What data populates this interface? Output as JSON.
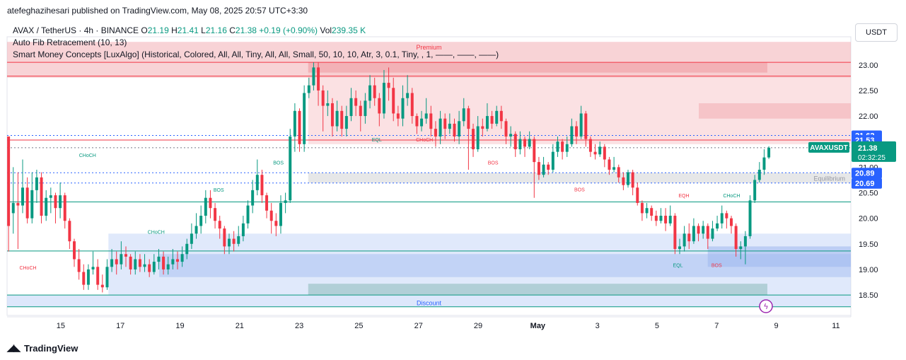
{
  "publisher": "atefeghazihesari published on TradingView.com, May 08, 2025 20:57 UTC+3:30",
  "legend": {
    "symbol": "AVAX / TetherUS · 4h · BINANCE",
    "o_label": "O",
    "o": "21.19",
    "h_label": "H",
    "h": "21.41",
    "l_label": "L",
    "l": "21.16",
    "c_label": "C",
    "c": "21.38",
    "change": "+0.19 (+0.90%)",
    "vol_label": "Vol",
    "vol": "239.35 K",
    "indicator1": "Auto Fib Retracement (10, 13)",
    "indicator2": "Smart Money Concepts [LuxAlgo] (Historical, Colored, All, All, Tiny, All, All, Small, 50, 10, 10, Atr, 3, 0.1, Tiny, , 1, ——, ——, ——)"
  },
  "currency_button": "USDT",
  "footer_brand": "TradingView",
  "colors": {
    "up": "#089981",
    "down": "#f23645",
    "premium": "#f7c9cc",
    "discount": "#c7d7f8",
    "accent": "#2962ff"
  },
  "chart_data": {
    "type": "candlestick",
    "y_ticks": [
      "23.00",
      "22.50",
      "22.00",
      "21.50",
      "21.00",
      "20.50",
      "20.00",
      "19.50",
      "19.00",
      "18.50"
    ],
    "y_tick_values": [
      23.0,
      22.5,
      22.0,
      21.5,
      21.0,
      20.5,
      20.0,
      19.5,
      19.0,
      18.5
    ],
    "ylim": [
      18.1,
      23.55
    ],
    "x_ticks": [
      "15",
      "17",
      "19",
      "21",
      "23",
      "25",
      "27",
      "29",
      "May",
      "3",
      "5",
      "7",
      "9",
      "11"
    ],
    "x_tick_days": [
      15,
      17,
      19,
      21,
      23,
      25,
      27,
      29,
      31,
      33,
      35,
      37,
      39,
      41
    ],
    "xlim_days": [
      13.2,
      41.5
    ],
    "last_day": 38.75,
    "price_labels": [
      {
        "text": "21.62",
        "value": 21.62,
        "kind": "level"
      },
      {
        "text": "21.53",
        "value": 21.53,
        "kind": "level"
      },
      {
        "text": "21.38",
        "value": 21.38,
        "kind": "price"
      },
      {
        "text": "20.89",
        "value": 20.89,
        "kind": "level"
      },
      {
        "text": "20.69",
        "value": 20.69,
        "kind": "level"
      }
    ],
    "price_tag": {
      "symbol": "AVAXUSDT",
      "countdown": "02:32:25"
    },
    "zones": [
      {
        "name": "Premium",
        "label": "Premium",
        "from_day": 13.2,
        "to_day": 41.5,
        "low": 22.75,
        "high": 23.45,
        "fill": "#f2a7ad",
        "opacity": 0.5
      },
      {
        "name": "premium-inner",
        "label": "",
        "from_day": 23.3,
        "to_day": 41.5,
        "low": 21.45,
        "high": 23.05,
        "fill": "#f7c9cc",
        "opacity": 0.55
      },
      {
        "name": "Equilibrium",
        "label": "Equilibrium",
        "from_day": 23.3,
        "to_day": 41.5,
        "low": 20.69,
        "high": 20.89,
        "fill": "#c8c9cc",
        "opacity": 0.45
      },
      {
        "name": "Discount",
        "label": "Discount",
        "from_day": 13.2,
        "to_day": 41.5,
        "low": 18.27,
        "high": 18.5,
        "fill": "#c7d7f8",
        "opacity": 0.6
      }
    ],
    "boxes": [
      {
        "from_day": 16.6,
        "to_day": 41.5,
        "low": 18.5,
        "high": 19.7,
        "fill": "#c7d7f8",
        "opacity": 0.55
      },
      {
        "from_day": 18.3,
        "to_day": 41.5,
        "low": 18.85,
        "high": 19.3,
        "fill": "#a9c1f2",
        "opacity": 0.55
      },
      {
        "from_day": 23.3,
        "to_day": 38.7,
        "low": 18.5,
        "high": 18.72,
        "fill": "#9cc3c8",
        "opacity": 0.7
      },
      {
        "from_day": 36.7,
        "to_day": 41.5,
        "low": 19.05,
        "high": 19.45,
        "fill": "#9fb8ee",
        "opacity": 0.55
      },
      {
        "from_day": 23.3,
        "to_day": 38.7,
        "low": 22.85,
        "high": 23.05,
        "fill": "#ee9aa0",
        "opacity": 0.55
      },
      {
        "from_day": 36.4,
        "to_day": 41.5,
        "low": 21.95,
        "high": 22.25,
        "fill": "#f2a7ad",
        "opacity": 0.5
      }
    ],
    "levels": [
      {
        "value": 21.62,
        "style": "dotted",
        "color": "#2962ff"
      },
      {
        "value": 21.53,
        "style": "solid",
        "color": "#f23645"
      },
      {
        "value": 21.38,
        "style": "dotted",
        "color": "#787b86"
      },
      {
        "value": 20.89,
        "style": "dotted",
        "color": "#2962ff"
      },
      {
        "value": 20.69,
        "style": "dotted",
        "color": "#2962ff"
      },
      {
        "value": 20.32,
        "style": "solid",
        "color": "#089981"
      },
      {
        "value": 19.36,
        "style": "solid",
        "color": "#089981"
      },
      {
        "value": 23.05,
        "style": "solid",
        "color": "#f23645"
      },
      {
        "value": 22.78,
        "style": "solid",
        "color": "#f23645"
      },
      {
        "value": 18.5,
        "style": "solid",
        "color": "#089981"
      },
      {
        "value": 18.27,
        "style": "solid",
        "color": "#089981"
      }
    ],
    "structure_labels": [
      {
        "text": "CHoCH",
        "day": 13.9,
        "value": 19.0,
        "color": "#f23645"
      },
      {
        "text": "CHoCH",
        "day": 15.9,
        "value": 21.2,
        "color": "#089981"
      },
      {
        "text": "CHoCH",
        "day": 18.2,
        "value": 19.7,
        "color": "#089981"
      },
      {
        "text": "BOS",
        "day": 20.3,
        "value": 20.52,
        "color": "#089981"
      },
      {
        "text": "BOS",
        "day": 22.3,
        "value": 21.05,
        "color": "#089981"
      },
      {
        "text": "EQL",
        "day": 25.6,
        "value": 21.5,
        "color": "#089981"
      },
      {
        "text": "CHoCH",
        "day": 27.2,
        "value": 21.5,
        "color": "#f23645"
      },
      {
        "text": "BOS",
        "day": 29.5,
        "value": 21.05,
        "color": "#f23645"
      },
      {
        "text": "BOS",
        "day": 32.4,
        "value": 20.53,
        "color": "#f23645"
      },
      {
        "text": "EQH",
        "day": 35.9,
        "value": 20.41,
        "color": "#f23645"
      },
      {
        "text": "CHoCH",
        "day": 37.5,
        "value": 20.41,
        "color": "#089981"
      },
      {
        "text": "EQL",
        "day": 35.7,
        "value": 19.05,
        "color": "#089981"
      },
      {
        "text": "BOS",
        "day": 37.0,
        "value": 19.05,
        "color": "#f23645"
      }
    ],
    "candles": [
      [
        21.6,
        19.85,
        20.1,
        19.35
      ],
      [
        20.1,
        20.3,
        21.0,
        19.7
      ],
      [
        20.3,
        20.25,
        20.9,
        19.4
      ],
      [
        20.25,
        20.6,
        21.15,
        20.1
      ],
      [
        20.6,
        20.0,
        20.8,
        19.9
      ],
      [
        20.0,
        20.55,
        20.9,
        19.9
      ],
      [
        20.55,
        20.8,
        20.95,
        20.3
      ],
      [
        20.8,
        20.05,
        20.9,
        19.9
      ],
      [
        20.05,
        20.4,
        20.55,
        19.95
      ],
      [
        20.4,
        20.45,
        20.6,
        20.1
      ],
      [
        20.45,
        20.2,
        20.5,
        19.9
      ],
      [
        20.2,
        20.45,
        20.7,
        20.0
      ],
      [
        20.45,
        19.95,
        20.5,
        19.8
      ],
      [
        19.95,
        19.55,
        20.0,
        19.4
      ],
      [
        19.55,
        19.2,
        19.6,
        19.05
      ],
      [
        19.2,
        18.95,
        19.4,
        18.8
      ],
      [
        18.95,
        18.7,
        19.1,
        18.6
      ],
      [
        18.7,
        19.0,
        19.1,
        18.6
      ],
      [
        19.0,
        19.05,
        19.35,
        18.9
      ],
      [
        19.05,
        18.7,
        19.2,
        18.6
      ],
      [
        18.7,
        18.65,
        18.9,
        18.55
      ],
      [
        18.65,
        19.05,
        19.2,
        18.6
      ],
      [
        19.05,
        19.2,
        19.4,
        18.95
      ],
      [
        19.2,
        19.1,
        19.35,
        18.9
      ],
      [
        19.1,
        19.3,
        19.55,
        19.0
      ],
      [
        19.3,
        19.25,
        19.45,
        19.05
      ],
      [
        19.25,
        19.0,
        19.3,
        18.9
      ],
      [
        19.0,
        19.2,
        19.35,
        18.9
      ],
      [
        19.2,
        19.05,
        19.3,
        18.95
      ],
      [
        19.05,
        19.1,
        19.3,
        18.95
      ],
      [
        19.1,
        18.95,
        19.2,
        18.85
      ],
      [
        18.95,
        19.15,
        19.3,
        18.9
      ],
      [
        19.15,
        19.25,
        19.4,
        19.0
      ],
      [
        19.25,
        19.0,
        19.35,
        18.9
      ],
      [
        19.0,
        19.1,
        19.25,
        18.9
      ],
      [
        19.1,
        19.2,
        19.4,
        19.0
      ],
      [
        19.2,
        19.15,
        19.35,
        19.0
      ],
      [
        19.15,
        19.3,
        19.45,
        19.05
      ],
      [
        19.3,
        19.5,
        19.6,
        19.2
      ],
      [
        19.5,
        19.7,
        19.9,
        19.4
      ],
      [
        19.7,
        19.85,
        20.1,
        19.6
      ],
      [
        19.85,
        20.05,
        20.25,
        19.7
      ],
      [
        20.05,
        20.4,
        20.55,
        19.9
      ],
      [
        20.4,
        20.2,
        20.55,
        20.0
      ],
      [
        20.2,
        19.95,
        20.3,
        19.8
      ],
      [
        19.95,
        19.8,
        20.05,
        19.6
      ],
      [
        19.8,
        19.45,
        19.85,
        19.3
      ],
      [
        19.45,
        19.6,
        19.7,
        19.3
      ],
      [
        19.6,
        19.5,
        19.75,
        19.35
      ],
      [
        19.5,
        19.65,
        19.85,
        19.45
      ],
      [
        19.65,
        19.9,
        20.05,
        19.55
      ],
      [
        19.9,
        20.25,
        20.35,
        19.8
      ],
      [
        20.25,
        20.55,
        20.75,
        20.1
      ],
      [
        20.55,
        20.85,
        21.15,
        20.45
      ],
      [
        20.85,
        20.45,
        20.95,
        20.3
      ],
      [
        20.45,
        20.15,
        20.5,
        20.0
      ],
      [
        20.15,
        19.95,
        20.3,
        19.7
      ],
      [
        19.95,
        19.85,
        20.1,
        19.65
      ],
      [
        19.85,
        20.3,
        20.45,
        19.7
      ],
      [
        20.3,
        20.35,
        20.5,
        20.1
      ],
      [
        20.35,
        21.6,
        21.75,
        20.3
      ],
      [
        21.6,
        22.1,
        22.25,
        21.3
      ],
      [
        22.1,
        21.45,
        22.15,
        21.3
      ],
      [
        21.45,
        22.45,
        22.6,
        21.3
      ],
      [
        22.45,
        22.6,
        22.75,
        22.35
      ],
      [
        22.6,
        22.95,
        23.05,
        22.5
      ],
      [
        22.95,
        22.5,
        23.05,
        22.2
      ],
      [
        22.5,
        22.2,
        22.6,
        21.7
      ],
      [
        22.2,
        22.25,
        22.5,
        22.0
      ],
      [
        22.25,
        21.8,
        22.35,
        21.6
      ],
      [
        21.8,
        22.1,
        22.3,
        21.7
      ],
      [
        22.1,
        21.75,
        22.2,
        21.6
      ],
      [
        21.75,
        22.0,
        22.2,
        21.6
      ],
      [
        22.0,
        22.35,
        22.55,
        21.9
      ],
      [
        22.35,
        22.2,
        22.5,
        22.0
      ],
      [
        22.2,
        22.0,
        22.3,
        21.7
      ],
      [
        22.0,
        22.3,
        22.45,
        21.85
      ],
      [
        22.3,
        22.6,
        22.8,
        22.15
      ],
      [
        22.6,
        22.35,
        22.75,
        22.2
      ],
      [
        22.35,
        22.05,
        22.45,
        21.8
      ],
      [
        22.05,
        22.65,
        22.9,
        21.95
      ],
      [
        22.65,
        22.55,
        22.95,
        22.3
      ],
      [
        22.55,
        22.05,
        22.75,
        21.9
      ],
      [
        22.05,
        21.95,
        22.2,
        21.8
      ],
      [
        21.95,
        22.35,
        22.6,
        21.8
      ],
      [
        22.35,
        22.45,
        22.8,
        22.2
      ],
      [
        22.45,
        22.0,
        22.55,
        21.85
      ],
      [
        22.0,
        21.8,
        22.05,
        21.65
      ],
      [
        21.8,
        21.95,
        22.1,
        21.7
      ],
      [
        21.95,
        22.05,
        22.35,
        21.85
      ],
      [
        22.05,
        21.75,
        22.2,
        21.6
      ],
      [
        21.75,
        21.6,
        21.9,
        21.4
      ],
      [
        21.6,
        21.95,
        22.1,
        21.45
      ],
      [
        21.95,
        21.75,
        22.05,
        21.55
      ],
      [
        21.75,
        21.85,
        22.05,
        21.65
      ],
      [
        21.85,
        21.6,
        21.95,
        21.5
      ],
      [
        21.6,
        21.9,
        22.1,
        21.45
      ],
      [
        21.9,
        22.15,
        22.35,
        21.8
      ],
      [
        22.15,
        21.75,
        22.2,
        20.95
      ],
      [
        21.75,
        21.35,
        21.85,
        21.2
      ],
      [
        21.35,
        21.8,
        22.0,
        21.3
      ],
      [
        21.8,
        21.75,
        21.95,
        21.6
      ],
      [
        21.75,
        22.0,
        22.25,
        21.7
      ],
      [
        22.0,
        21.85,
        22.1,
        21.75
      ],
      [
        21.85,
        22.1,
        22.2,
        21.8
      ],
      [
        22.1,
        21.9,
        22.2,
        21.75
      ],
      [
        21.9,
        21.6,
        21.95,
        21.45
      ],
      [
        21.6,
        21.65,
        21.8,
        21.4
      ],
      [
        21.65,
        21.35,
        21.7,
        21.2
      ],
      [
        21.35,
        21.55,
        21.7,
        21.25
      ],
      [
        21.55,
        21.4,
        21.6,
        21.2
      ],
      [
        21.4,
        21.55,
        21.7,
        21.35
      ],
      [
        21.55,
        21.1,
        21.6,
        20.4
      ],
      [
        21.1,
        20.85,
        21.2,
        20.75
      ],
      [
        20.85,
        21.05,
        21.2,
        20.8
      ],
      [
        21.05,
        20.95,
        21.1,
        20.85
      ],
      [
        20.95,
        21.3,
        21.45,
        20.9
      ],
      [
        21.3,
        21.5,
        21.6,
        21.2
      ],
      [
        21.5,
        21.3,
        21.55,
        21.15
      ],
      [
        21.3,
        21.45,
        21.6,
        21.2
      ],
      [
        21.45,
        21.8,
        21.95,
        21.4
      ],
      [
        21.8,
        21.6,
        21.9,
        21.45
      ],
      [
        21.6,
        22.05,
        22.2,
        21.55
      ],
      [
        22.05,
        21.55,
        22.1,
        21.4
      ],
      [
        21.55,
        21.3,
        21.6,
        21.2
      ],
      [
        21.3,
        21.25,
        21.45,
        21.15
      ],
      [
        21.25,
        21.4,
        21.5,
        21.2
      ],
      [
        21.4,
        21.15,
        21.45,
        21.0
      ],
      [
        21.15,
        20.95,
        21.2,
        20.85
      ],
      [
        20.95,
        21.0,
        21.2,
        20.9
      ],
      [
        21.0,
        20.8,
        21.05,
        20.7
      ],
      [
        20.8,
        20.65,
        20.9,
        20.55
      ],
      [
        20.65,
        20.9,
        20.95,
        20.6
      ],
      [
        20.9,
        20.6,
        20.95,
        20.45
      ],
      [
        20.6,
        20.3,
        20.7,
        20.25
      ],
      [
        20.3,
        20.1,
        20.35,
        19.95
      ],
      [
        20.1,
        20.2,
        20.3,
        20.0
      ],
      [
        20.2,
        20.05,
        20.25,
        19.95
      ],
      [
        20.05,
        19.95,
        20.15,
        19.85
      ],
      [
        19.95,
        20.05,
        20.2,
        19.9
      ],
      [
        20.05,
        19.9,
        20.2,
        19.75
      ],
      [
        19.9,
        20.05,
        20.25,
        19.85
      ],
      [
        20.05,
        19.4,
        20.1,
        19.3
      ],
      [
        19.4,
        19.45,
        19.6,
        19.3
      ],
      [
        19.45,
        19.7,
        19.85,
        19.35
      ],
      [
        19.7,
        19.55,
        19.9,
        19.4
      ],
      [
        19.55,
        19.85,
        20.0,
        19.5
      ],
      [
        19.85,
        19.7,
        19.9,
        19.55
      ],
      [
        19.7,
        19.85,
        19.95,
        19.6
      ],
      [
        19.85,
        19.6,
        19.9,
        19.4
      ],
      [
        19.6,
        19.8,
        19.95,
        19.55
      ],
      [
        19.8,
        19.9,
        20.05,
        19.75
      ],
      [
        19.9,
        20.1,
        20.25,
        19.8
      ],
      [
        20.1,
        20.0,
        20.15,
        19.8
      ],
      [
        20.0,
        19.85,
        20.05,
        19.7
      ],
      [
        19.85,
        19.4,
        19.9,
        19.25
      ],
      [
        19.4,
        19.45,
        19.55,
        19.2
      ],
      [
        19.45,
        19.65,
        19.75,
        19.1
      ],
      [
        19.65,
        20.35,
        20.45,
        19.6
      ],
      [
        20.35,
        20.75,
        20.85,
        20.3
      ],
      [
        20.75,
        20.95,
        21.1,
        20.7
      ],
      [
        20.95,
        21.19,
        21.35,
        20.85
      ],
      [
        21.19,
        21.38,
        21.41,
        21.16
      ]
    ]
  }
}
